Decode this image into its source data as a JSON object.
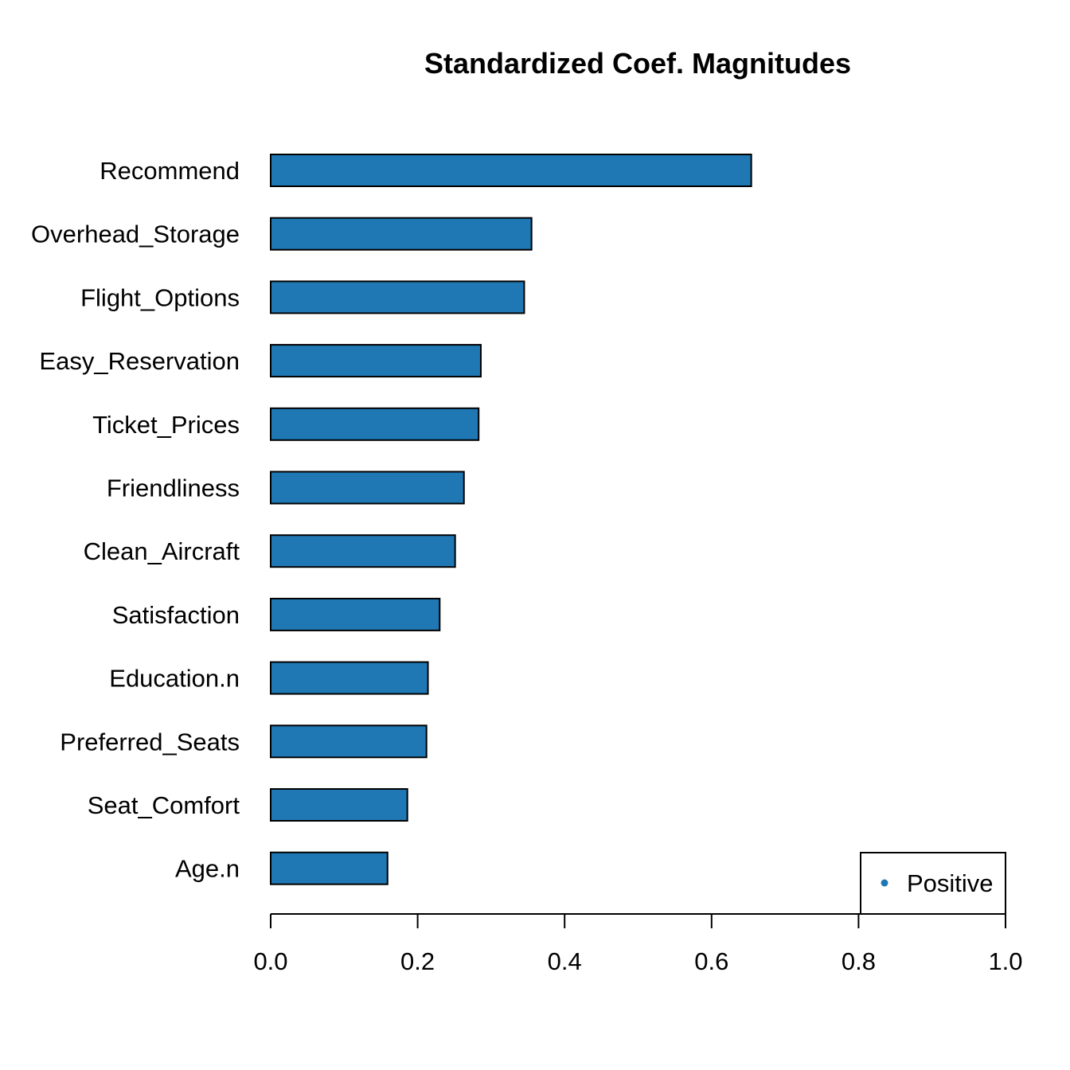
{
  "chart_data": {
    "type": "bar",
    "orientation": "horizontal",
    "title": "Standardized Coef. Magnitudes",
    "xlabel": "",
    "ylabel": "",
    "xlim": [
      0,
      1
    ],
    "x_ticks": [
      "0.0",
      "0.2",
      "0.4",
      "0.6",
      "0.8",
      "1.0"
    ],
    "x_tick_values": [
      0,
      0.2,
      0.4,
      0.6,
      0.8,
      1.0
    ],
    "grid": false,
    "categories": [
      "Recommend",
      "Overhead_Storage",
      "Flight_Options",
      "Easy_Reservation",
      "Ticket_Prices",
      "Friendliness",
      "Clean_Aircraft",
      "Satisfaction",
      "Education.n",
      "Preferred_Seats",
      "Seat_Comfort",
      "Age.n"
    ],
    "series": [
      {
        "name": "Positive",
        "color": "#1F77B4",
        "values": [
          0.654,
          0.355,
          0.345,
          0.286,
          0.283,
          0.263,
          0.251,
          0.23,
          0.214,
          0.212,
          0.186,
          0.159
        ]
      }
    ],
    "legend": {
      "position": "bottom-right",
      "entries": [
        "Positive"
      ]
    }
  }
}
